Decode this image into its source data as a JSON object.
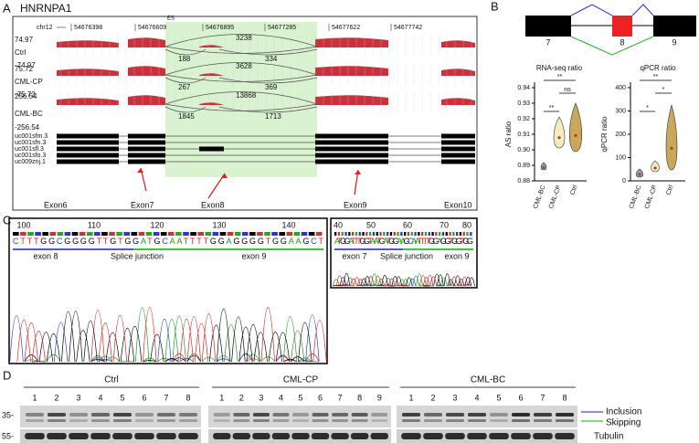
{
  "panel_a": {
    "label": "A",
    "gene": "HNRNPA1",
    "chrom": "chr12",
    "coords": [
      "54676398",
      "54676609",
      "54676895",
      "54677285",
      "54677622",
      "54677742"
    ],
    "es": "ES",
    "tracks": [
      {
        "name": "Ctrl",
        "max": "74.97",
        "min": "-74.97",
        "junctions": [
          "3238",
          "188",
          "334"
        ]
      },
      {
        "name": "CML-CP",
        "max": "75.72",
        "min": "-75.72",
        "junctions": [
          "3628",
          "267",
          "369"
        ]
      },
      {
        "name": "CML-BC",
        "max": "256.54",
        "min": "-256.54",
        "junctions": [
          "13868",
          "1845",
          "1713"
        ]
      }
    ],
    "transcripts": [
      "uc001sfm.3",
      "uc001sfn.3",
      "uc001sfl.3",
      "uc001sfo.3",
      "uc009znj.1"
    ],
    "exons": [
      "Exon6",
      "Exon7",
      "Exon8",
      "Exon9",
      "Exon10"
    ]
  },
  "panel_b": {
    "label": "B",
    "exons": [
      "7",
      "8",
      "9"
    ],
    "rna": {
      "title": "RNA-seq ratio",
      "ylabel": "AS ratio",
      "yticks": [
        "0.94",
        "0.93",
        "0.92",
        "0.91",
        "0.90",
        "0.89",
        "0.88"
      ],
      "groups": [
        "CML-BC",
        "CML-CP",
        "Ctrl"
      ],
      "sig": [
        "**",
        "**",
        "ns"
      ]
    },
    "qpcr": {
      "title": "qPCR ratio",
      "ylabel": "qPCR ratio",
      "yticks": [
        "400",
        "300",
        "200",
        "100",
        "0"
      ],
      "groups": [
        "CML-BC",
        "CML-CP",
        "Ctrl"
      ],
      "sig": [
        "**",
        "*",
        "*"
      ]
    }
  },
  "panel_c": {
    "label": "C",
    "left": {
      "ticks": [
        "100",
        "110",
        "120",
        "130",
        "140"
      ],
      "sequence": "CTTTGGCGGGGTTGTGGATGCAATTTTGGAGGGGTGGAAGCT",
      "regions": [
        "exon 8",
        "Splice junction",
        "exon 9"
      ]
    },
    "right": {
      "ticks": [
        "40",
        "50",
        "60",
        "70",
        "80"
      ],
      "sequence": "ATGGATTTGGTAATGATGGAAGCAATTTTGGAGGTGGTGG",
      "regions": [
        "exon 7",
        "Splice junction",
        "exon 9"
      ]
    }
  },
  "panel_d": {
    "label": "D",
    "groups": [
      {
        "name": "Ctrl",
        "lanes": [
          "1",
          "2",
          "3",
          "4",
          "5",
          "6",
          "7",
          "8"
        ]
      },
      {
        "name": "CML-CP",
        "lanes": [
          "1",
          "2",
          "3",
          "4",
          "5",
          "6",
          "7",
          "8",
          "9"
        ]
      },
      {
        "name": "CML-BC",
        "lanes": [
          "1",
          "2",
          "3",
          "4",
          "5",
          "6",
          "7",
          "8"
        ]
      }
    ],
    "markers": [
      "35-",
      "55-"
    ],
    "bands": [
      "Inclusion",
      "Skipping",
      "Tubulin"
    ]
  }
}
